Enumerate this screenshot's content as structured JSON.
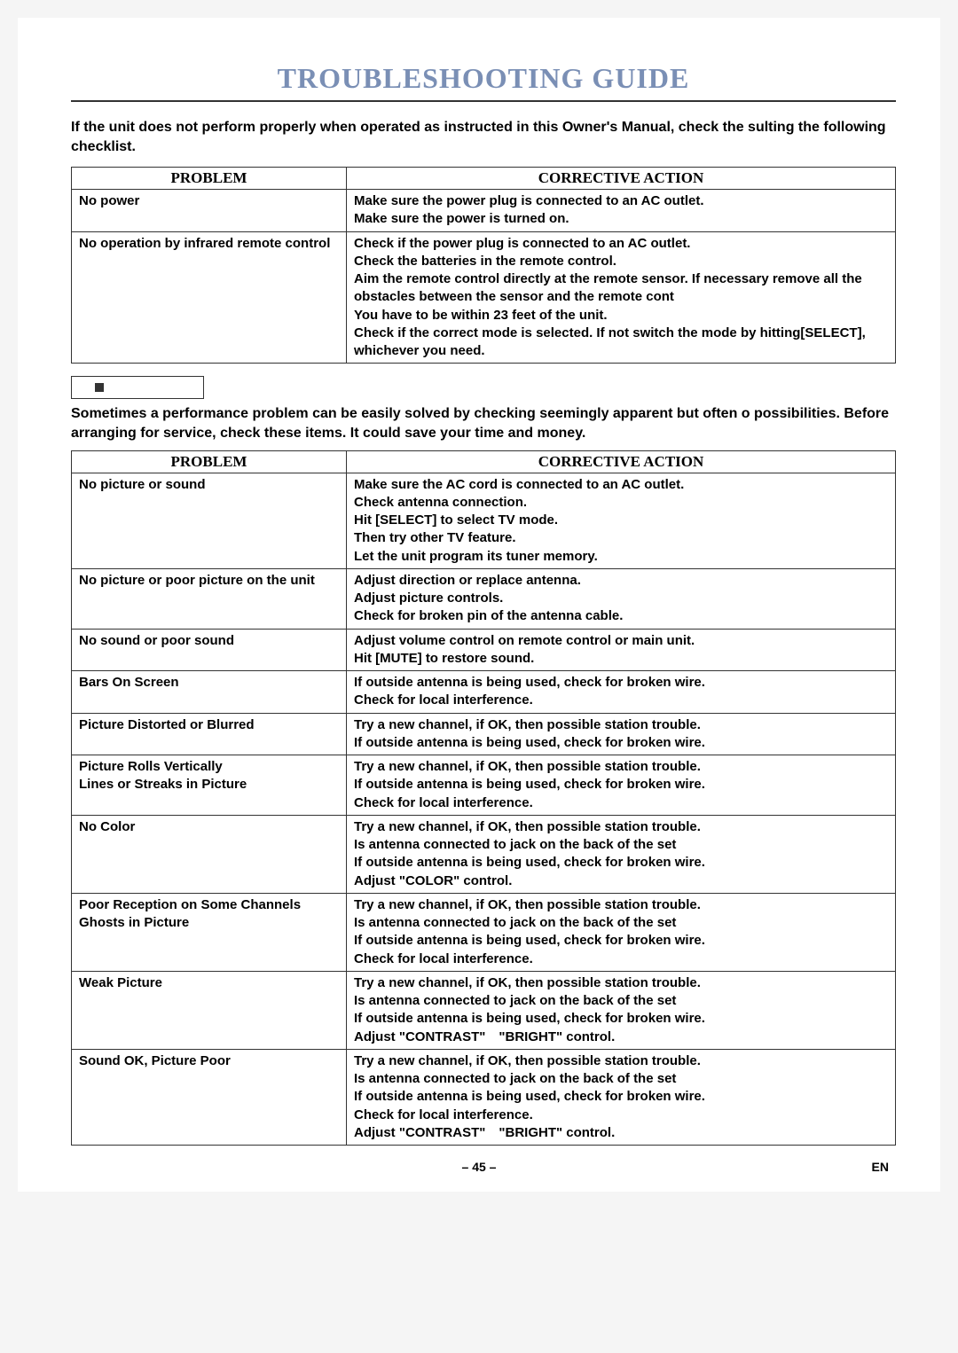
{
  "title": "TROUBLESHOOTING GUIDE",
  "intro": "If the unit does not perform properly when operated as instructed in this Owner's Manual, check the sulting the following checklist.",
  "note": "Sometimes a performance problem can be easily solved by checking seemingly apparent but often o possibilities. Before arranging for service, check these items. It could save your time and money.",
  "headers": {
    "problem": "PROBLEM",
    "action": "CORRECTIVE ACTION"
  },
  "table1": [
    {
      "problem": "No power",
      "actions": [
        "Make sure the power plug is connected to an AC outlet.",
        "Make sure the power is turned on."
      ]
    },
    {
      "problem": "No operation by infrared remote control",
      "actions": [
        "Check if the power plug is connected to an AC outlet.",
        "Check the batteries in the remote control.",
        "Aim the remote control directly at the remote sensor. If necessary remove all the obstacles between the sensor and the remote cont",
        "You have to be within 23 feet of the unit.",
        "Check if the correct mode is selected. If not switch the mode by hitting[SELECT], whichever you need."
      ]
    }
  ],
  "table2": [
    {
      "problem": "No picture or sound",
      "actions": [
        "Make sure the AC cord is connected to an AC outlet.",
        "Check antenna connection.",
        "Hit [SELECT] to select TV mode.",
        "Then try other TV feature.",
        "Let the unit program its tuner memory."
      ]
    },
    {
      "problem": "No picture or poor picture on the unit",
      "actions": [
        "Adjust direction or replace antenna.",
        "Adjust picture controls.",
        "Check for broken pin of the antenna cable."
      ]
    },
    {
      "problem": "No sound or poor sound",
      "actions": [
        "Adjust volume control on remote control or main unit.",
        "Hit [MUTE] to restore sound."
      ]
    },
    {
      "problem": "Bars On Screen",
      "actions": [
        "If outside antenna is being used, check for broken wire.",
        "Check for local interference."
      ]
    },
    {
      "problem": "Picture Distorted or Blurred",
      "actions": [
        "Try a new channel, if OK, then possible station trouble.",
        "If outside antenna is being used, check for broken wire."
      ]
    },
    {
      "problem": "Picture Rolls Vertically\nLines or Streaks in Picture",
      "actions": [
        "Try a new channel, if OK, then possible station trouble.",
        "If outside antenna is being used, check for broken wire.",
        "Check for local interference."
      ]
    },
    {
      "problem": "No Color",
      "actions": [
        "Try a new channel, if OK, then possible station trouble.",
        "Is antenna connected to jack on the back of the set",
        "If outside antenna is being used, check for broken wire.",
        "Adjust \"COLOR\" control."
      ]
    },
    {
      "problem": "Poor Reception on Some Channels\nGhosts in Picture",
      "actions": [
        "Try a new channel, if OK, then possible station trouble.",
        "Is antenna connected to jack on the back of the set",
        "If outside antenna is being used, check for broken wire.",
        "Check for local interference."
      ]
    },
    {
      "problem": "Weak Picture",
      "actions": [
        "Try a new channel, if OK, then possible station trouble.",
        "Is antenna connected to jack on the back of the set",
        "If outside antenna is being used, check for broken wire.",
        "Adjust \"CONTRAST\" \"BRIGHT\" control."
      ]
    },
    {
      "problem": "Sound OK, Picture Poor",
      "actions": [
        "Try a new channel, if OK, then possible station trouble.",
        "Is antenna connected to jack on the back of the set",
        "If outside antenna is being used, check for broken wire.",
        "Check for local interference.",
        "Adjust \"CONTRAST\" \"BRIGHT\" control."
      ]
    }
  ],
  "footer": {
    "page": "– 45 –",
    "lang": "EN"
  }
}
